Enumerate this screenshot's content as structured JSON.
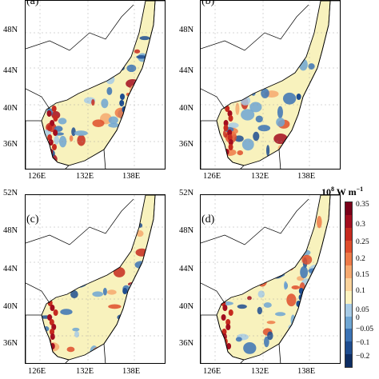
{
  "panels": [
    {
      "id": "a",
      "label": "(a)"
    },
    {
      "id": "b",
      "label": "(b)"
    },
    {
      "id": "c",
      "label": "(c)"
    },
    {
      "id": "d",
      "label": "(d)"
    }
  ],
  "lat_ticks": [
    "52N",
    "48N",
    "44N",
    "40N",
    "36N"
  ],
  "lon_ticks": [
    "126E",
    "132E",
    "138E"
  ],
  "colorbar": {
    "unit_base": "10",
    "unit_exp": "8",
    "unit_rest": " W m",
    "unit_rest_exp": "−1",
    "labels": [
      "0.35",
      "0.3",
      "0.25",
      "0.2",
      "0.15",
      "0.1",
      "0.05",
      "0",
      "−0.05",
      "−0.1",
      "−0.2"
    ],
    "colors": [
      "#7a0019",
      "#a30d1e",
      "#c62a1f",
      "#df4d2c",
      "#ee7a48",
      "#f6a96f",
      "#fbd39b",
      "#fdf3bf",
      "#a7cbe6",
      "#6fa6d3",
      "#3b73b5",
      "#1e4d90",
      "#0d2d63"
    ]
  },
  "colors": {
    "sea_base": "#f8f2bd",
    "warm": "#d73524",
    "cool": "#4a7fc1",
    "coast": "#000000"
  }
}
